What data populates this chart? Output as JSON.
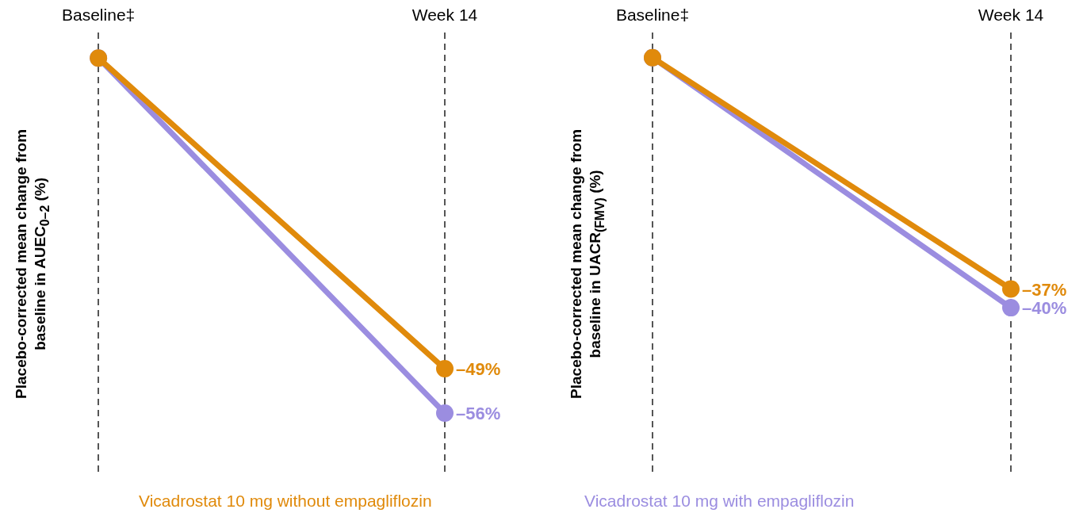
{
  "chart_data": [
    {
      "type": "line",
      "ylabel": "Placebo-corrected mean change from baseline in AUEC$_{0–2}$ (%)",
      "categories": [
        "Baseline‡",
        "Week 14"
      ],
      "ylim": [
        -66,
        4
      ],
      "grid": "x",
      "tick_labels": "x",
      "legend": "bottom",
      "marker": "circle",
      "line_style": "solid",
      "series": [
        {
          "name": "Vicadrostat 10 mg without empagliflozin",
          "color": "#e08a0b",
          "values": [
            0,
            -49
          ],
          "value_labels": [
            null,
            "–49%"
          ]
        },
        {
          "color": "#9b8de0",
          "values": [
            0,
            -56
          ],
          "value_labels": [
            null,
            "–56%"
          ]
        }
      ]
    },
    {
      "type": "line",
      "ylabel": "Placebo-corrected mean change from baseline in UACR$_{(FMV)}$ (%)",
      "categories": [
        "Baseline‡",
        "Week 14"
      ],
      "ylim": [
        -67,
        4
      ],
      "grid": "x",
      "tick_labels": "x",
      "legend": "bottom",
      "marker": "circle",
      "line_style": "solid",
      "series": [
        {
          "color": "#e08a0b",
          "values": [
            0,
            -37
          ],
          "value_labels": [
            null,
            "–37%"
          ]
        },
        {
          "name": "Vicadrostat 10 mg with empagliflozin",
          "color": "#9b8de0",
          "values": [
            0,
            -40
          ],
          "value_labels": [
            null,
            "–40%"
          ]
        }
      ]
    }
  ]
}
